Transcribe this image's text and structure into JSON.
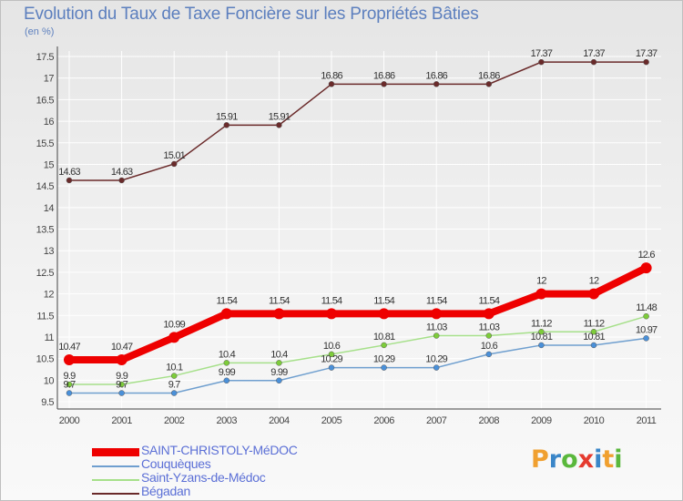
{
  "title": "Evolution du Taux de Taxe Foncière sur les Propriétés Bâties",
  "unit_label": "(en %)",
  "logo": {
    "letters": [
      "P",
      "r",
      "o",
      "x",
      "i",
      "t",
      "i"
    ],
    "colors": [
      "#f0a030",
      "#3a86c8",
      "#5ab83c",
      "#e53a2e",
      "#3a86c8",
      "#f0a030",
      "#5ab83c"
    ]
  },
  "chart_data": {
    "type": "line",
    "title": "Evolution du Taux de Taxe Foncière sur les Propriétés Bâties",
    "ylabel": "(en %)",
    "xlabel": "",
    "categories": [
      "2000",
      "2001",
      "2002",
      "2003",
      "2004",
      "2005",
      "2006",
      "2007",
      "2008",
      "2009",
      "2010",
      "2011"
    ],
    "ylim": [
      9.5,
      17.5
    ],
    "yticks": [
      "9.5",
      "10",
      "10.5",
      "11",
      "11.5",
      "12",
      "12.5",
      "13",
      "13.5",
      "14",
      "14.5",
      "15",
      "15.5",
      "16",
      "16.5",
      "17",
      "17.5"
    ],
    "legend_position": "bottom-left",
    "series": [
      {
        "name": "SAINT-CHRISTOLY-MéDOC",
        "color": "#ee0000",
        "emphasis": true,
        "values": [
          10.47,
          10.47,
          10.99,
          11.54,
          11.54,
          11.54,
          11.54,
          11.54,
          11.54,
          12,
          12,
          12.6
        ],
        "labels": [
          "10.47",
          "10.47",
          "10.99",
          "11.54",
          "11.54",
          "11.54",
          "11.54",
          "11.54",
          "11.54",
          "12",
          "12",
          "12.6"
        ]
      },
      {
        "name": "Couquèques",
        "color": "#6f9fcf",
        "marker": "#4a90d9",
        "values": [
          9.7,
          9.7,
          9.7,
          9.99,
          9.99,
          10.29,
          10.29,
          10.29,
          10.6,
          10.81,
          10.81,
          10.97
        ],
        "labels": [
          "9.7",
          "9.7",
          "9.7",
          "9.99",
          "9.99",
          "10.29",
          "10.29",
          "10.29",
          "10.6",
          "10.81",
          "10.81",
          "10.97"
        ]
      },
      {
        "name": "Saint-Yzans-de-Médoc",
        "color": "#a6e08a",
        "marker": "#7dcc3a",
        "values": [
          9.9,
          9.9,
          10.1,
          10.4,
          10.4,
          10.6,
          10.81,
          11.03,
          11.03,
          11.12,
          11.12,
          11.48
        ],
        "labels": [
          "9.9",
          "9.9",
          "10.1",
          "10.4",
          "10.4",
          "10.6",
          "10.81",
          "11.03",
          "11.03",
          "11.12",
          "11.12",
          "11.48"
        ]
      },
      {
        "name": "Bégadan",
        "color": "#6a2a2a",
        "marker": "#6a2a2a",
        "values": [
          14.63,
          14.63,
          15.01,
          15.91,
          15.91,
          16.86,
          16.86,
          16.86,
          16.86,
          17.37,
          17.37,
          17.37
        ],
        "labels": [
          "14.63",
          "14.63",
          "15.01",
          "15.91",
          "15.91",
          "16.86",
          "16.86",
          "16.86",
          "16.86",
          "17.37",
          "17.37",
          "17.37"
        ]
      }
    ]
  }
}
